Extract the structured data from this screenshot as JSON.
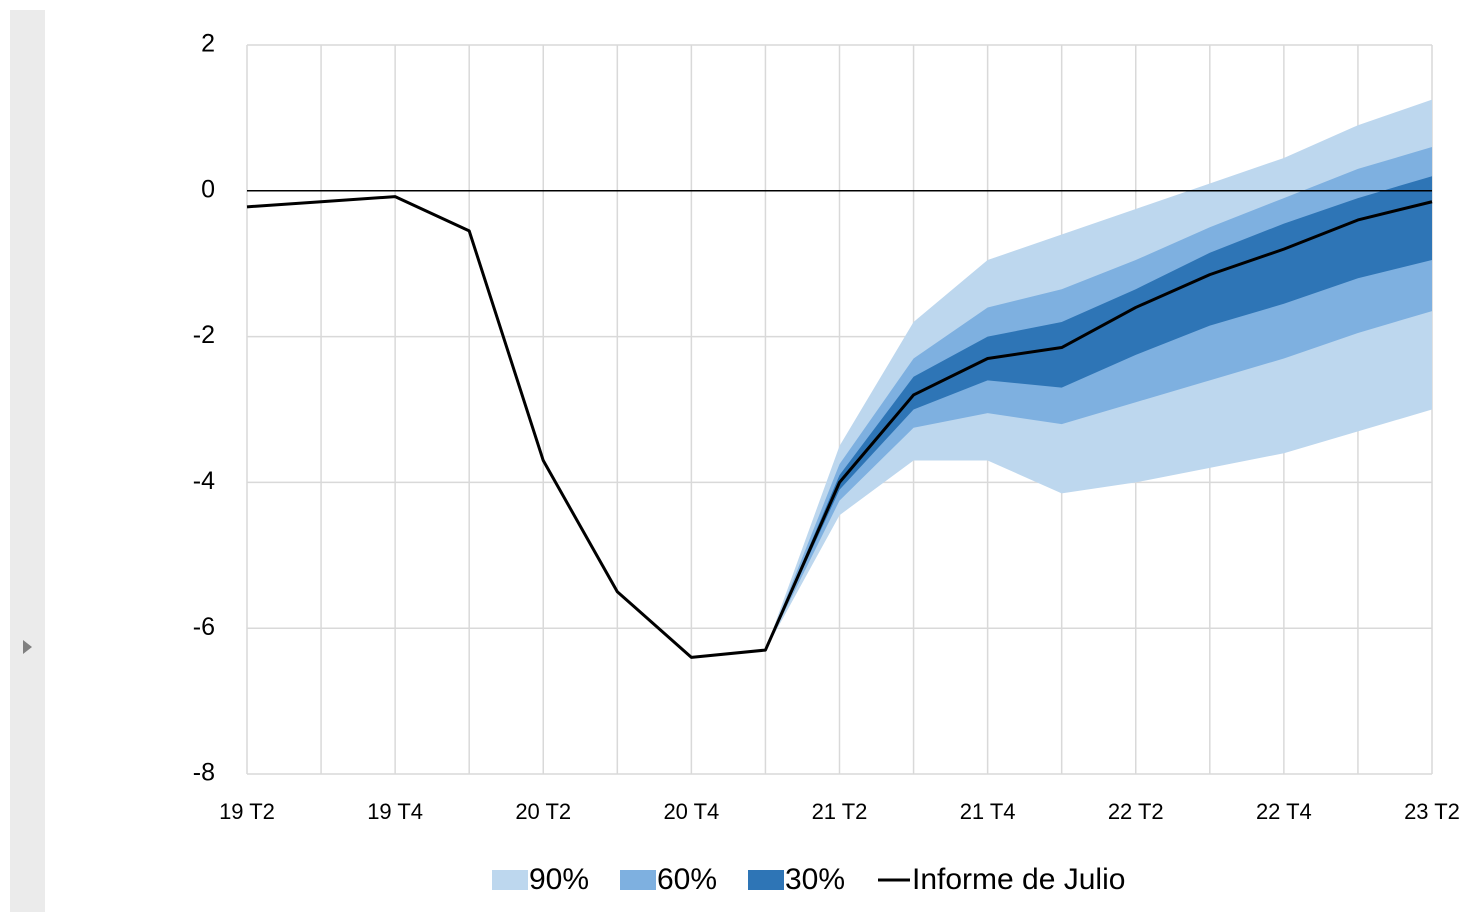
{
  "chart_data": {
    "type": "fan",
    "categories": [
      "19 T2",
      null,
      "19 T4",
      null,
      "20 T2",
      null,
      "20 T4",
      null,
      "21 T2",
      null,
      "21 T4",
      null,
      "22 T2",
      null,
      "22 T4",
      null,
      "23 T2"
    ],
    "ylim": [
      -8,
      2
    ],
    "yticks": [
      2,
      0,
      -2,
      -4,
      -6,
      -8
    ],
    "grid": true,
    "series": [
      {
        "name": "90%",
        "color": "#bdd7ee",
        "lower": [
          null,
          null,
          null,
          null,
          null,
          null,
          null,
          -6.3,
          -4.45,
          -3.7,
          -3.7,
          -4.15,
          -4.0,
          -3.8,
          -3.6,
          -3.3,
          -3.0
        ],
        "upper": [
          null,
          null,
          null,
          null,
          null,
          null,
          null,
          -6.3,
          -3.5,
          -1.8,
          -0.95,
          -0.6,
          -0.25,
          0.1,
          0.45,
          0.9,
          1.25
        ]
      },
      {
        "name": "60%",
        "color": "#7eb0e0",
        "lower": [
          null,
          null,
          null,
          null,
          null,
          null,
          null,
          -6.3,
          -4.25,
          -3.25,
          -3.05,
          -3.2,
          -2.9,
          -2.6,
          -2.3,
          -1.95,
          -1.65
        ],
        "upper": [
          null,
          null,
          null,
          null,
          null,
          null,
          null,
          -6.3,
          -3.75,
          -2.3,
          -1.6,
          -1.35,
          -0.95,
          -0.5,
          -0.1,
          0.3,
          0.6
        ]
      },
      {
        "name": "30%",
        "color": "#2e75b6",
        "lower": [
          null,
          null,
          null,
          null,
          null,
          null,
          null,
          -6.3,
          -4.1,
          -3.0,
          -2.6,
          -2.7,
          -2.25,
          -1.85,
          -1.55,
          -1.2,
          -0.95
        ],
        "upper": [
          null,
          null,
          null,
          null,
          null,
          null,
          null,
          -6.3,
          -3.9,
          -2.55,
          -2.0,
          -1.8,
          -1.35,
          -0.85,
          -0.45,
          -0.1,
          0.2
        ]
      },
      {
        "name": "Informe de Julio",
        "color": "#000000",
        "values": [
          -0.22,
          -0.15,
          -0.08,
          -0.55,
          -3.7,
          -5.5,
          -6.4,
          -6.3,
          -4.0,
          -2.8,
          -2.3,
          -2.15,
          -1.6,
          -1.15,
          -0.8,
          -0.4,
          -0.15
        ]
      }
    ]
  }
}
